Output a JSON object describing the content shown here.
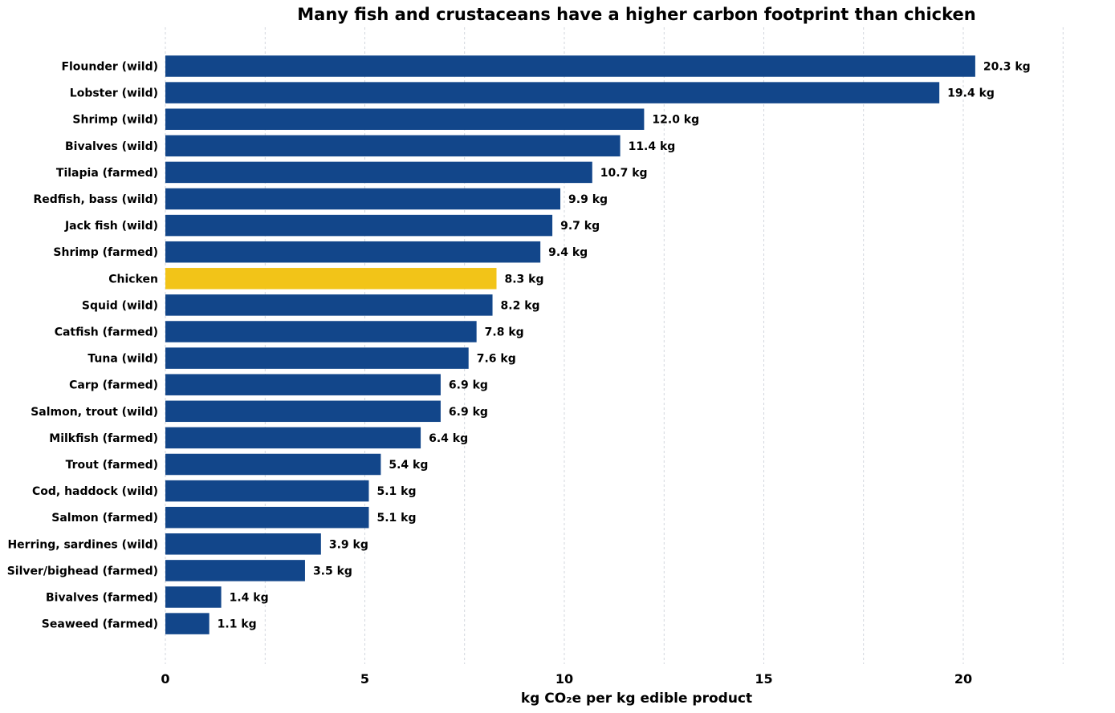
{
  "chart_data": {
    "type": "bar",
    "orientation": "horizontal",
    "title": "Many fish and crustaceans have a higher carbon footprint than chicken",
    "xlabel": "kg CO₂e per kg edible product",
    "ylabel": "",
    "xlim": [
      0,
      23.5
    ],
    "xticks": [
      0,
      5,
      10,
      15,
      20
    ],
    "grid": "vertical dashed",
    "value_suffix": " kg",
    "categories": [
      "Flounder (wild)",
      "Lobster (wild)",
      "Shrimp (wild)",
      "Bivalves (wild)",
      "Tilapia (farmed)",
      "Redfish, bass (wild)",
      "Jack fish (wild)",
      "Shrimp (farmed)",
      "Chicken",
      "Squid (wild)",
      "Catfish (farmed)",
      "Tuna (wild)",
      "Carp (farmed)",
      "Salmon, trout (wild)",
      "Milkfish (farmed)",
      "Trout (farmed)",
      "Cod, haddock (wild)",
      "Salmon (farmed)",
      "Herring, sardines (wild)",
      "Silver/bighead (farmed)",
      "Bivalves (farmed)",
      "Seaweed (farmed)"
    ],
    "values": [
      20.3,
      19.4,
      12.0,
      11.4,
      10.7,
      9.9,
      9.7,
      9.4,
      8.3,
      8.2,
      7.8,
      7.6,
      6.9,
      6.9,
      6.4,
      5.4,
      5.1,
      5.1,
      3.9,
      3.5,
      1.4,
      1.1
    ],
    "value_labels": [
      "20.3 kg",
      "19.4 kg",
      "12.0 kg",
      "11.4 kg",
      "10.7 kg",
      "9.9 kg",
      "9.7 kg",
      "9.4 kg",
      "8.3 kg",
      "8.2 kg",
      "7.8 kg",
      "7.6 kg",
      "6.9 kg",
      "6.9 kg",
      "6.4 kg",
      "5.4 kg",
      "5.1 kg",
      "5.1 kg",
      "3.9 kg",
      "3.5 kg",
      "1.4 kg",
      "1.1 kg"
    ],
    "highlight": "Chicken",
    "colors": {
      "default": "#12468a",
      "highlight": "#f2c418",
      "grid": "#c8cdd6"
    }
  }
}
